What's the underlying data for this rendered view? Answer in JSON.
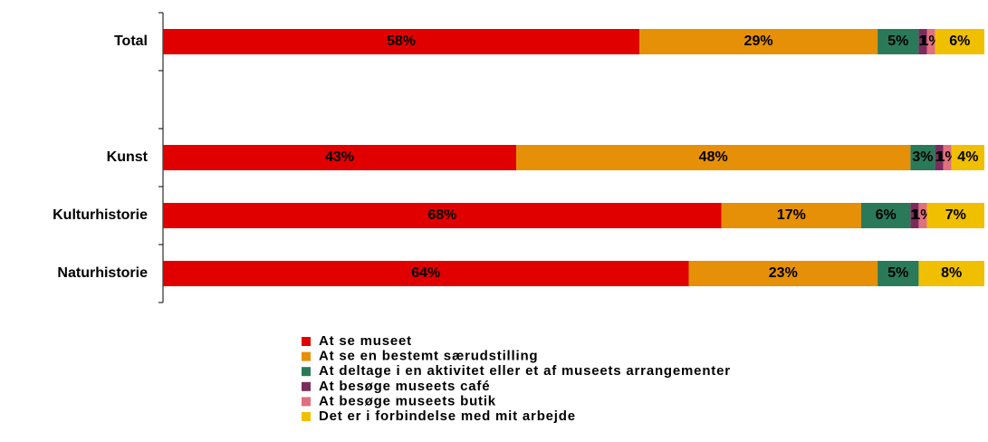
{
  "chart_data": {
    "type": "stacked_barh",
    "categories": [
      "Total",
      null,
      "Kunst",
      "Kulturhistorie",
      "Naturhistorie"
    ],
    "xlim": [
      0,
      100
    ],
    "series": [
      {
        "name": "At se museet",
        "color": "#e00000",
        "values": [
          58,
          null,
          43,
          68,
          64
        ],
        "value_labels": [
          "58%",
          null,
          "43%",
          "68%",
          "64%"
        ]
      },
      {
        "name": "At se en bestemt særudstilling",
        "color": "#e69008",
        "values": [
          29,
          null,
          48,
          17,
          23
        ],
        "value_labels": [
          "29%",
          null,
          "48%",
          "17%",
          "23%"
        ]
      },
      {
        "name": "At deltage i en aktivitet eller et af museets arrangementer",
        "color": "#2a7a5a",
        "values": [
          5,
          null,
          3,
          6,
          5
        ],
        "value_labels": [
          "5%",
          null,
          "3%",
          "6%",
          "5%"
        ]
      },
      {
        "name": "At besøge museets café",
        "color": "#7b2c5c",
        "values": [
          1,
          null,
          1,
          1,
          0
        ],
        "value_labels": [
          "1",
          null,
          "1",
          "1",
          null
        ]
      },
      {
        "name": "At besøge museets butik",
        "color": "#e0707e",
        "values": [
          1,
          null,
          1,
          1,
          0
        ],
        "value_labels": [
          "1%",
          null,
          "1%",
          "1%",
          null
        ]
      },
      {
        "name": "Det er i forbindelse med mit arbejde",
        "color": "#f0c000",
        "values": [
          6,
          null,
          4,
          7,
          8
        ],
        "value_labels": [
          "6%",
          null,
          "4%",
          "7%",
          "8%"
        ]
      }
    ]
  }
}
